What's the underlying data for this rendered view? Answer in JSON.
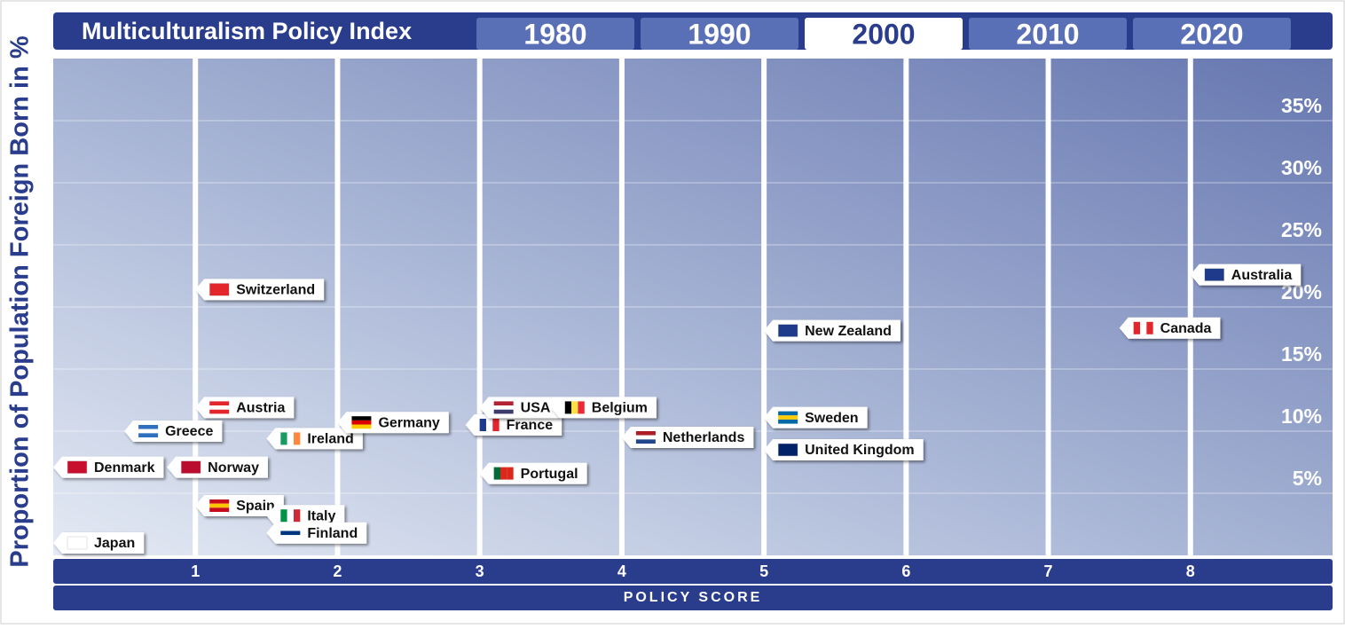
{
  "chart_data": {
    "type": "scatter",
    "title": "Multiculturalism Policy Index",
    "tabs": [
      "1980",
      "1990",
      "2000",
      "2010",
      "2020"
    ],
    "selected_tab": "2000",
    "y_label": "Proportion of Population Foreign Born in %",
    "x_label": "POLICY SCORE",
    "categories": [
      "Switzerland",
      "Australia",
      "Canada",
      "New Zealand",
      "Austria",
      "Greece",
      "Ireland",
      "Germany",
      "France",
      "USA",
      "Belgium",
      "Sweden",
      "Netherlands",
      "United Kingdom",
      "Denmark",
      "Norway",
      "Portugal",
      "Spain",
      "Italy",
      "Finland",
      "Japan"
    ],
    "x": [
      1.0,
      8.0,
      7.5,
      5.0,
      1.0,
      0.5,
      1.5,
      2.0,
      2.9,
      3.0,
      3.5,
      5.0,
      4.0,
      5.0,
      0.0,
      0.8,
      3.0,
      1.0,
      1.5,
      1.5,
      0.0
    ],
    "values": [
      21.4,
      22.6,
      18.3,
      18.1,
      11.9,
      10.0,
      9.4,
      10.7,
      10.5,
      11.9,
      11.9,
      11.1,
      9.5,
      8.5,
      7.1,
      7.1,
      6.6,
      4.0,
      3.2,
      1.8,
      1.0
    ],
    "xlim": [
      0,
      9
    ],
    "ylim": [
      0,
      40
    ],
    "xticks": [
      1,
      2,
      3,
      4,
      5,
      6,
      7,
      8
    ],
    "yticks": [
      {
        "value": 5,
        "label": "5%"
      },
      {
        "value": 10,
        "label": "10%"
      },
      {
        "value": 15,
        "label": "15%"
      },
      {
        "value": 20,
        "label": "20%"
      },
      {
        "value": 25,
        "label": "25%"
      },
      {
        "value": 30,
        "label": "30%"
      },
      {
        "value": 35,
        "label": "35%"
      }
    ],
    "grid": true
  }
}
